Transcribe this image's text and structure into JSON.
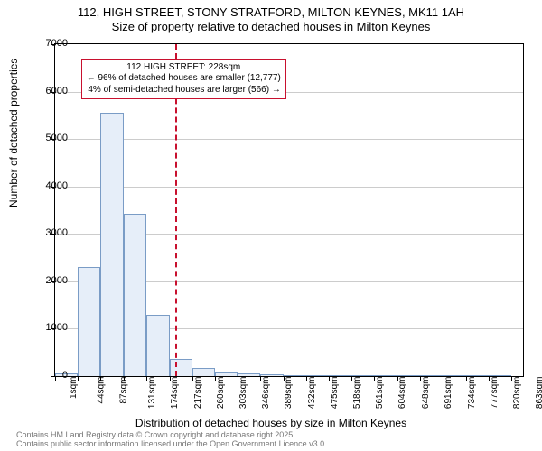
{
  "title": {
    "line1": "112, HIGH STREET, STONY STRATFORD, MILTON KEYNES, MK11 1AH",
    "line2": "Size of property relative to detached houses in Milton Keynes",
    "fontsize": 13
  },
  "chart": {
    "type": "histogram",
    "x_min": 1,
    "x_max": 885,
    "y_min": 0,
    "y_max": 7000,
    "y_ticks": [
      0,
      1000,
      2000,
      3000,
      4000,
      5000,
      6000,
      7000
    ],
    "x_tick_values": [
      1,
      44,
      87,
      131,
      174,
      217,
      260,
      303,
      346,
      389,
      432,
      475,
      518,
      561,
      604,
      648,
      691,
      734,
      777,
      820,
      863
    ],
    "x_tick_labels": [
      "1sqm",
      "44sqm",
      "87sqm",
      "131sqm",
      "174sqm",
      "217sqm",
      "260sqm",
      "303sqm",
      "346sqm",
      "389sqm",
      "432sqm",
      "475sqm",
      "518sqm",
      "561sqm",
      "604sqm",
      "648sqm",
      "691sqm",
      "734sqm",
      "777sqm",
      "820sqm",
      "863sqm"
    ],
    "bars": [
      {
        "x_start": 1,
        "x_end": 44,
        "value": 60
      },
      {
        "x_start": 44,
        "x_end": 87,
        "value": 2300
      },
      {
        "x_start": 87,
        "x_end": 131,
        "value": 5550
      },
      {
        "x_start": 131,
        "x_end": 174,
        "value": 3420
      },
      {
        "x_start": 174,
        "x_end": 217,
        "value": 1300
      },
      {
        "x_start": 217,
        "x_end": 260,
        "value": 370
      },
      {
        "x_start": 260,
        "x_end": 303,
        "value": 170
      },
      {
        "x_start": 303,
        "x_end": 346,
        "value": 100
      },
      {
        "x_start": 346,
        "x_end": 389,
        "value": 60
      },
      {
        "x_start": 389,
        "x_end": 432,
        "value": 40
      },
      {
        "x_start": 432,
        "x_end": 475,
        "value": 20
      },
      {
        "x_start": 475,
        "x_end": 518,
        "value": 10
      },
      {
        "x_start": 518,
        "x_end": 561,
        "value": 10
      },
      {
        "x_start": 561,
        "x_end": 604,
        "value": 8
      },
      {
        "x_start": 604,
        "x_end": 648,
        "value": 6
      },
      {
        "x_start": 648,
        "x_end": 691,
        "value": 5
      },
      {
        "x_start": 691,
        "x_end": 734,
        "value": 5
      },
      {
        "x_start": 734,
        "x_end": 777,
        "value": 4
      },
      {
        "x_start": 777,
        "x_end": 820,
        "value": 4
      },
      {
        "x_start": 820,
        "x_end": 863,
        "value": 3
      }
    ],
    "bar_fill": "#e6eef9",
    "bar_border": "#7a9cc6",
    "grid_color": "#cccccc",
    "background": "#ffffff",
    "marker": {
      "x": 228,
      "color": "#c8102e",
      "width": 2
    },
    "annotation": {
      "line1": "112 HIGH STREET: 228sqm",
      "line2": "← 96% of detached houses are smaller (12,777)",
      "line3": "4% of semi-detached houses are larger (566) →",
      "border_color": "#c8102e",
      "bg": "#ffffff",
      "top_value": 6700,
      "left_value": 50
    }
  },
  "axes": {
    "ylabel": "Number of detached properties",
    "xlabel": "Distribution of detached houses by size in Milton Keynes",
    "label_fontsize": 12,
    "tick_fontsize": 10
  },
  "footer": {
    "line1": "Contains HM Land Registry data © Crown copyright and database right 2025.",
    "line2": "Contains public sector information licensed under the Open Government Licence v3.0."
  }
}
